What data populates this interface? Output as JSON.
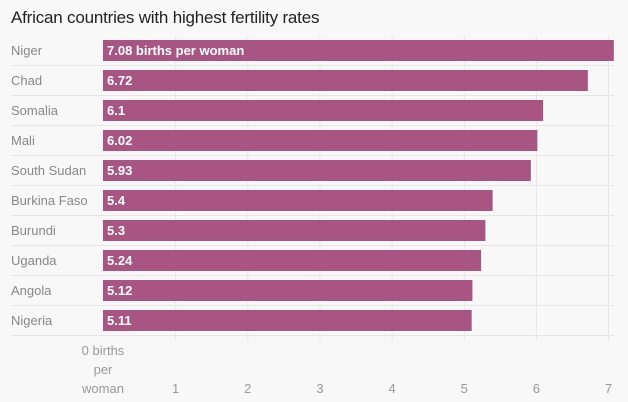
{
  "chart_data": {
    "type": "bar",
    "orientation": "horizontal",
    "title": "African countries with highest fertility rates",
    "xlabel": "",
    "ylabel": "",
    "categories": [
      "Niger",
      "Chad",
      "Somalia",
      "Mali",
      "South Sudan",
      "Burkina Faso",
      "Burundi",
      "Uganda",
      "Angola",
      "Nigeria"
    ],
    "values": [
      7.08,
      6.72,
      6.1,
      6.02,
      5.93,
      5.4,
      5.3,
      5.24,
      5.12,
      5.11
    ],
    "data_labels": [
      "7.08 births per woman",
      "6.72",
      "6.1",
      "6.02",
      "5.93",
      "5.4",
      "5.3",
      "5.24",
      "5.12",
      "5.11"
    ],
    "xlim": [
      0,
      7.1
    ],
    "x_ticks": [
      0,
      1,
      2,
      3,
      4,
      5,
      6,
      7
    ],
    "x_tick_labels": [
      "0 births per woman",
      "1",
      "2",
      "3",
      "4",
      "5",
      "6",
      "7"
    ],
    "grid": true,
    "bar_color": "#a85583",
    "legend": "none"
  }
}
